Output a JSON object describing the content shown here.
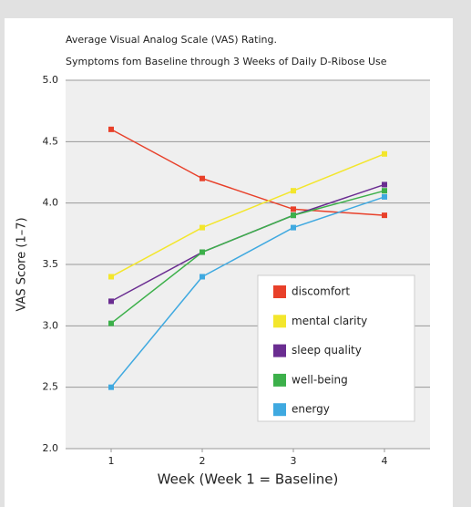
{
  "chart_data": {
    "type": "line",
    "title": "Average Visual Analog Scale (VAS) Rating.",
    "subtitle": "Symptoms fom Baseline through 3 Weeks of Daily D-Ribose Use",
    "x_label": "Week (Week 1 = Baseline)",
    "y_label": "VAS Score (1–7)",
    "x": [
      1,
      2,
      3,
      4
    ],
    "xlim": [
      0.5,
      4.5
    ],
    "xticks": [
      1,
      2,
      3,
      4
    ],
    "ylim": [
      2,
      5
    ],
    "yticks": [
      {
        "value": 2,
        "label": "2.0"
      },
      {
        "value": 2.5,
        "label": "2.5"
      },
      {
        "value": 3,
        "label": "3.0"
      },
      {
        "value": 3.5,
        "label": "3.5"
      },
      {
        "value": 4,
        "label": "4.0"
      },
      {
        "value": 4.5,
        "label": "4.5"
      },
      {
        "value": 5,
        "label": "5.0"
      }
    ],
    "grid": true,
    "legend": "lower right",
    "series": [
      {
        "name": "discomfort",
        "color": "#e8402a",
        "values": [
          4.6,
          4.2,
          3.95,
          3.9
        ]
      },
      {
        "name": "mental clarity",
        "color": "#f3e62c",
        "values": [
          3.4,
          3.8,
          4.1,
          4.4
        ]
      },
      {
        "name": "sleep quality",
        "color": "#6a2d91",
        "values": [
          3.2,
          3.6,
          3.9,
          4.15
        ]
      },
      {
        "name": "well-being",
        "color": "#3cb04a",
        "values": [
          3.02,
          3.6,
          3.9,
          4.1
        ]
      },
      {
        "name": "energy",
        "color": "#3fa9e0",
        "values": [
          2.5,
          3.4,
          3.8,
          4.05
        ]
      }
    ]
  }
}
